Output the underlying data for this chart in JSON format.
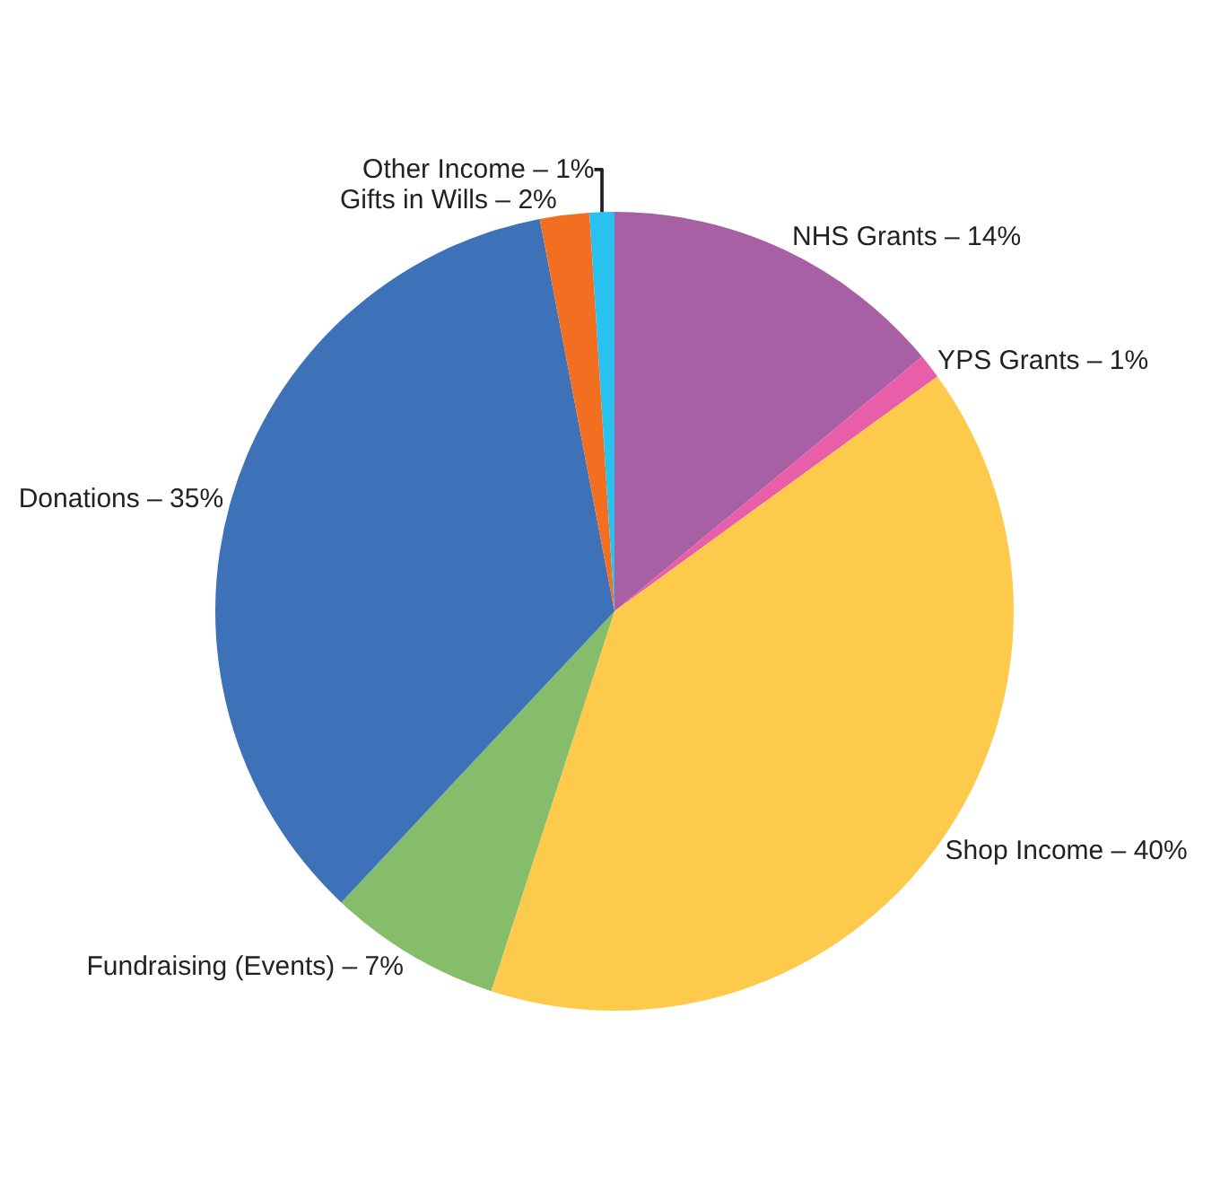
{
  "chart_data": {
    "type": "pie",
    "categories": [
      "NHS Grants – 14%",
      "YPS Grants – 1%",
      "Shop Income – 40%",
      "Fundraising (Events) – 7%",
      "Donations – 35%",
      "Gifts in Wills – 2%",
      "Other Income – 1%"
    ],
    "values": [
      14,
      1,
      40,
      7,
      35,
      2,
      1
    ],
    "colors": [
      "#a660a3",
      "#e95ea8",
      "#fdca4c",
      "#86bd6a",
      "#3d72b8",
      "#f26f22",
      "#29c2ee"
    ]
  }
}
